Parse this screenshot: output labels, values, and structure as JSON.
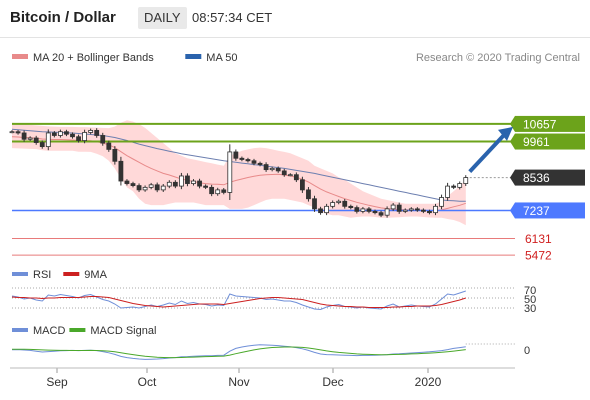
{
  "header": {
    "title": "Bitcoin / Dollar",
    "timeframe": "DAILY",
    "time": "08:57:34 CET"
  },
  "copyright": "Research © 2020 Trading Central",
  "colors": {
    "candle": "#333333",
    "bands_fill": "#ffd9d9",
    "ma20": "#e88a8a",
    "ma50": "#6c7fb0",
    "resistance": "#6ca31b",
    "support": "#4d79ff",
    "weak_support": "#e87a7a",
    "arrow": "#2a63ad",
    "current": "#333333",
    "rsi": "#6f8fd8",
    "rsi_ma": "#cc2020",
    "macd": "#6f8fd8",
    "macd_signal": "#4aa82a"
  },
  "chart_data": [
    {
      "type": "candlestick",
      "legend": [
        {
          "label": "MA 20 + Bollinger Bands",
          "color": "#e88a8a"
        },
        {
          "label": "MA 50",
          "color": "#2a63ad"
        }
      ],
      "legend_placement": "top-left",
      "x_ticks": [
        "Sep",
        "Oct",
        "Nov",
        "Dec",
        "2020"
      ],
      "ylim": [
        5200,
        11800
      ],
      "grid": false,
      "levels": [
        {
          "label": "10657",
          "value": 10657,
          "kind": "resistance"
        },
        {
          "label": "9961",
          "value": 9961,
          "kind": "resistance"
        },
        {
          "label": "8536",
          "value": 8536,
          "kind": "current"
        },
        {
          "label": "7237",
          "value": 7237,
          "kind": "support"
        },
        {
          "label": "6131",
          "value": 6131,
          "kind": "weak-support"
        },
        {
          "label": "5472",
          "value": 5472,
          "kind": "weak-support"
        }
      ],
      "forecast_arrow": {
        "from": 8536,
        "to": 10657
      },
      "close": [
        10350,
        10300,
        10050,
        10100,
        9920,
        9760,
        10300,
        10200,
        10350,
        10250,
        10150,
        10000,
        10320,
        10400,
        10200,
        9900,
        9650,
        9180,
        8400,
        8300,
        8220,
        8050,
        8150,
        8250,
        8050,
        8200,
        8350,
        8200,
        8600,
        8300,
        8400,
        8200,
        8150,
        7900,
        8050,
        7950,
        9550,
        9300,
        9250,
        9200,
        9100,
        9050,
        8850,
        8900,
        8800,
        8650,
        8650,
        8450,
        8050,
        7700,
        7300,
        7150,
        7400,
        7550,
        7600,
        7400,
        7350,
        7200,
        7300,
        7200,
        7150,
        7050,
        7300,
        7450,
        7200,
        7250,
        7300,
        7250,
        7200,
        7150,
        7400,
        7750,
        8200,
        8150,
        8300,
        8536
      ],
      "ma20": [
        10150,
        10140,
        10120,
        10110,
        10090,
        10060,
        10050,
        10040,
        10040,
        10030,
        10020,
        10000,
        10000,
        9990,
        9960,
        9900,
        9830,
        9720,
        9560,
        9400,
        9270,
        9140,
        9010,
        8900,
        8800,
        8700,
        8640,
        8560,
        8480,
        8430,
        8380,
        8330,
        8300,
        8280,
        8270,
        8250,
        8350,
        8420,
        8480,
        8540,
        8590,
        8630,
        8650,
        8660,
        8670,
        8640,
        8600,
        8550,
        8470,
        8360,
        8220,
        8080,
        7970,
        7880,
        7790,
        7700,
        7630,
        7560,
        7500,
        7440,
        7390,
        7340,
        7310,
        7290,
        7270,
        7260,
        7250,
        7250,
        7240,
        7230,
        7230,
        7260,
        7320,
        7380,
        7440,
        7520
      ],
      "bb_upper": [
        10700,
        10680,
        10650,
        10620,
        10600,
        10580,
        10560,
        10550,
        10540,
        10540,
        10540,
        10530,
        10530,
        10520,
        10510,
        10500,
        10490,
        10550,
        10700,
        10800,
        10750,
        10650,
        10500,
        10300,
        10100,
        9900,
        9700,
        9500,
        9400,
        9300,
        9250,
        9200,
        9150,
        9100,
        9050,
        9000,
        9400,
        9500,
        9600,
        9650,
        9700,
        9720,
        9700,
        9650,
        9600,
        9550,
        9500,
        9400,
        9300,
        9200,
        9000,
        8900,
        8800,
        8700,
        8550,
        8450,
        8300,
        8150,
        8000,
        7900,
        7800,
        7700,
        7650,
        7600,
        7550,
        7500,
        7500,
        7500,
        7500,
        7500,
        7500,
        7600,
        7800,
        8000,
        8200,
        8450
      ],
      "bb_lower": [
        9700,
        9690,
        9680,
        9670,
        9660,
        9620,
        9600,
        9600,
        9600,
        9600,
        9600,
        9560,
        9560,
        9550,
        9480,
        9380,
        9200,
        8900,
        8500,
        8150,
        8000,
        7700,
        7500,
        7450,
        7450,
        7450,
        7500,
        7550,
        7550,
        7550,
        7550,
        7500,
        7450,
        7450,
        7450,
        7450,
        7300,
        7300,
        7300,
        7350,
        7450,
        7550,
        7650,
        7700,
        7700,
        7700,
        7650,
        7600,
        7550,
        7450,
        7350,
        7200,
        7100,
        7050,
        7050,
        7000,
        6950,
        6980,
        7000,
        7000,
        6980,
        6950,
        6950,
        6960,
        6970,
        6990,
        7000,
        7000,
        6980,
        6960,
        6950,
        6950,
        6900,
        6860,
        6780,
        6650
      ],
      "ma50": [
        10450,
        10430,
        10410,
        10390,
        10370,
        10350,
        10340,
        10330,
        10320,
        10310,
        10300,
        10280,
        10260,
        10240,
        10220,
        10200,
        10160,
        10120,
        10060,
        10000,
        9930,
        9860,
        9800,
        9740,
        9680,
        9630,
        9580,
        9530,
        9480,
        9440,
        9400,
        9360,
        9320,
        9280,
        9240,
        9200,
        9170,
        9140,
        9110,
        9080,
        9050,
        9020,
        8990,
        8960,
        8930,
        8900,
        8860,
        8820,
        8780,
        8740,
        8700,
        8650,
        8600,
        8550,
        8500,
        8450,
        8400,
        8350,
        8300,
        8250,
        8200,
        8150,
        8100,
        8050,
        8000,
        7950,
        7900,
        7850,
        7800,
        7750,
        7700,
        7650,
        7630,
        7620,
        7600,
        7600
      ]
    },
    {
      "type": "line",
      "legend": [
        {
          "label": "RSI",
          "color": "#6f8fd8"
        },
        {
          "label": "9MA",
          "color": "#cc2020"
        }
      ],
      "ylim": [
        20,
        80
      ],
      "y_ticks": [
        "70",
        "50",
        "30"
      ],
      "series": [
        {
          "name": "RSI",
          "values": [
            54,
            52,
            48,
            50,
            46,
            44,
            56,
            54,
            57,
            55,
            53,
            50,
            55,
            57,
            52,
            47,
            44,
            38,
            30,
            31,
            32,
            30,
            33,
            36,
            33,
            36,
            40,
            37,
            44,
            39,
            41,
            38,
            37,
            34,
            36,
            35,
            58,
            54,
            53,
            52,
            51,
            50,
            47,
            48,
            46,
            44,
            44,
            41,
            36,
            32,
            28,
            27,
            32,
            35,
            37,
            33,
            32,
            30,
            32,
            30,
            29,
            28,
            34,
            38,
            32,
            34,
            36,
            34,
            33,
            32,
            38,
            48,
            58,
            56,
            60,
            64
          ]
        },
        {
          "name": "9MA",
          "values": [
            52,
            51,
            51,
            50,
            50,
            49,
            50,
            50,
            51,
            51,
            51,
            51,
            52,
            53,
            53,
            52,
            51,
            48,
            45,
            42,
            39,
            37,
            35,
            34,
            33,
            32,
            33,
            34,
            35,
            36,
            37,
            38,
            38,
            38,
            38,
            37,
            39,
            41,
            43,
            45,
            47,
            49,
            50,
            51,
            51,
            50,
            49,
            48,
            47,
            44,
            41,
            38,
            36,
            35,
            34,
            33,
            33,
            32,
            32,
            31,
            31,
            31,
            31,
            32,
            32,
            33,
            33,
            34,
            34,
            34,
            35,
            37,
            40,
            43,
            46,
            50
          ]
        }
      ]
    },
    {
      "type": "line",
      "legend": [
        {
          "label": "MACD",
          "color": "#6f8fd8"
        },
        {
          "label": "MACD Signal",
          "color": "#4aa82a"
        }
      ],
      "ylim": [
        -600,
        600
      ],
      "y_ticks": [
        "0"
      ],
      "series": [
        {
          "name": "MACD",
          "values": [
            10,
            20,
            0,
            -20,
            -60,
            -100,
            -80,
            -60,
            -40,
            -30,
            -20,
            -30,
            -20,
            -10,
            -30,
            -80,
            -140,
            -220,
            -320,
            -380,
            -420,
            -450,
            -470,
            -460,
            -450,
            -430,
            -400,
            -380,
            -340,
            -330,
            -310,
            -300,
            -290,
            -290,
            -270,
            -260,
            -60,
            80,
            150,
            200,
            240,
            260,
            250,
            240,
            220,
            190,
            160,
            120,
            60,
            -20,
            -120,
            -200,
            -230,
            -240,
            -250,
            -260,
            -270,
            -280,
            -270,
            -270,
            -260,
            -250,
            -230,
            -200,
            -190,
            -170,
            -150,
            -130,
            -110,
            -90,
            -60,
            -30,
            20,
            80,
            120,
            160
          ]
        },
        {
          "name": "MACD Signal",
          "values": [
            40,
            38,
            34,
            28,
            18,
            6,
            -5,
            -15,
            -20,
            -22,
            -24,
            -25,
            -24,
            -22,
            -23,
            -34,
            -55,
            -88,
            -134,
            -183,
            -230,
            -274,
            -313,
            -342,
            -364,
            -377,
            -382,
            -381,
            -373,
            -364,
            -353,
            -343,
            -332,
            -324,
            -313,
            -303,
            -254,
            -187,
            -119,
            -55,
            4,
            55,
            94,
            123,
            142,
            150,
            152,
            146,
            129,
            100,
            57,
            3,
            -44,
            -85,
            -118,
            -146,
            -171,
            -193,
            -210,
            -221,
            -230,
            -234,
            -233,
            -226,
            -218,
            -209,
            -197,
            -183,
            -168,
            -153,
            -135,
            -114,
            -87,
            -53,
            -18,
            18
          ]
        }
      ]
    }
  ]
}
